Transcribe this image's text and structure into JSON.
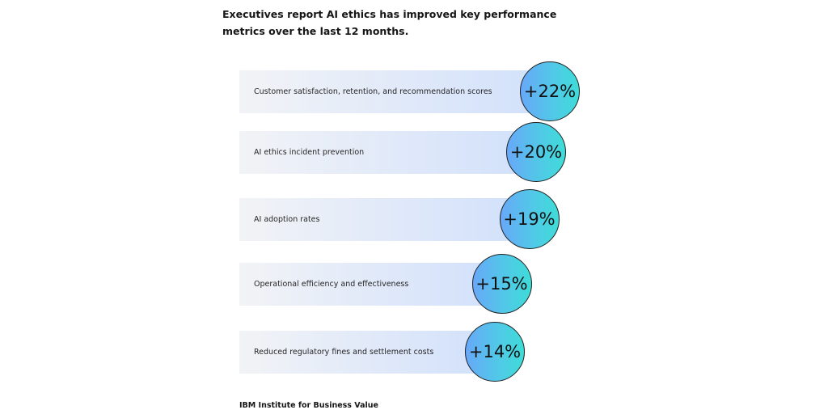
{
  "title": "Executives report AI ethics has improved key performance metrics over the last 12 months.",
  "footer": "IBM Institute for Business Value",
  "chart_data": {
    "type": "bar",
    "orientation": "horizontal",
    "categories": [
      "Customer satisfaction, retention, and recommendation scores",
      "AI ethics incident prevention",
      "AI adoption rates",
      "Operational efficiency and effectiveness",
      "Reduced regulatory fines and settlement costs"
    ],
    "values": [
      22,
      20,
      19,
      15,
      14
    ],
    "data_labels": [
      "+22%",
      "+20%",
      "+19%",
      "+15%",
      "+14%"
    ],
    "unit": "%",
    "colors": {
      "bar_start": "#f2f3f6",
      "bar_end": "#d0e0fb",
      "circle_start": "#68a8f8",
      "circle_end": "#3edcd8"
    }
  }
}
